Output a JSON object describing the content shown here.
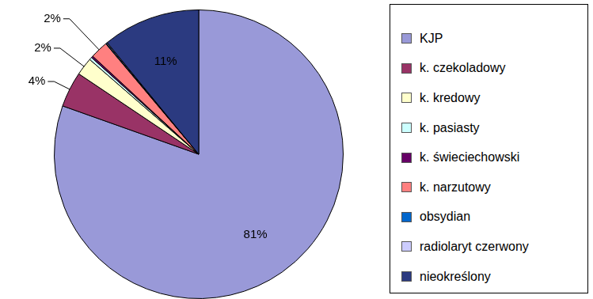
{
  "chart_data": {
    "type": "pie",
    "categories": [
      "KJP",
      "k. czekoladowy",
      "k. kredowy",
      "k. pasiasty",
      "k. świeciechowski",
      "k. narzutowy",
      "obsydian",
      "radiolaryt czerwony",
      "nieokreślony"
    ],
    "values": [
      81,
      4,
      2,
      0.3,
      0.2,
      2,
      0.1,
      0.1,
      11
    ],
    "value_labels": [
      "81%",
      "4%",
      "2%",
      null,
      null,
      "2%",
      null,
      null,
      "11%"
    ],
    "colors": [
      "#9999d8",
      "#993366",
      "#ffffcc",
      "#ccffff",
      "#660066",
      "#ff8080",
      "#0066cc",
      "#ccccff",
      "#2b3a80"
    ],
    "data_labels": true,
    "legend": "right"
  }
}
